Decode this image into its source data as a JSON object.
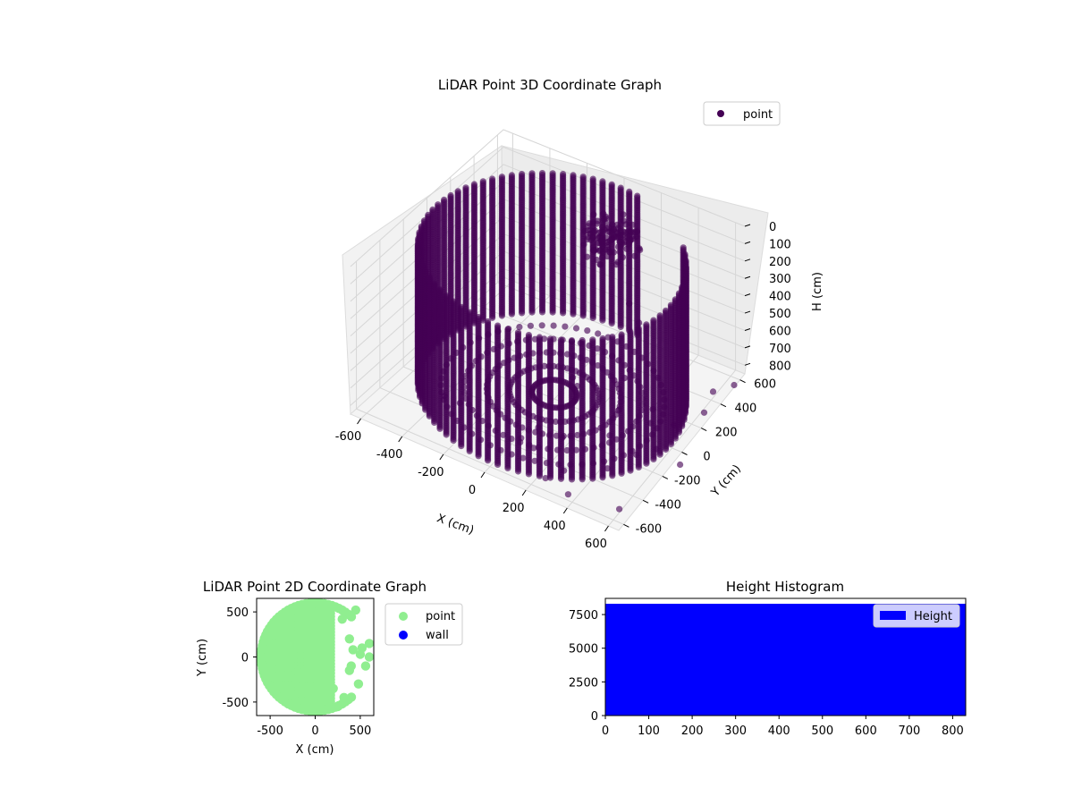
{
  "colors": {
    "point3d": "#440154",
    "point2d": "#90ee90",
    "wall": "#0000ff",
    "histogram": "#0000ff"
  },
  "chart_data": [
    {
      "type": "scatter",
      "projection": "3d",
      "title": "LiDAR Point 3D Coordinate Graph",
      "xlabel": "X (cm)",
      "ylabel": "Y (cm)",
      "zlabel": "H (cm)",
      "xlim": [
        -650,
        650
      ],
      "ylim": [
        -650,
        650
      ],
      "zlim": [
        850,
        0
      ],
      "xticks": [
        -600,
        -400,
        -200,
        0,
        200,
        400,
        600
      ],
      "yticks": [
        -600,
        -400,
        -200,
        0,
        200,
        400,
        600
      ],
      "zticks": [
        0,
        100,
        200,
        300,
        400,
        500,
        600,
        700,
        800
      ],
      "z_inverted": true,
      "grid": true,
      "legend": {
        "position": "upper-right",
        "entries": [
          "point"
        ]
      },
      "structure": {
        "wall_cylinder": {
          "radius": 600,
          "h_range": [
            20,
            820
          ],
          "arc_deg": [
            80,
            400
          ],
          "angle_step_deg": 4.5,
          "h_step": 10
        },
        "floor_disc_h": 820,
        "floor_radii": [
          100,
          200,
          300,
          400,
          500
        ],
        "blob_h_range": [
          130,
          330
        ]
      },
      "scattered_points": [
        [
          450,
          -350,
          800
        ],
        [
          520,
          -200,
          790
        ],
        [
          610,
          -560,
          810
        ],
        [
          300,
          -480,
          800
        ],
        [
          380,
          -600,
          815
        ],
        [
          560,
          100,
          805
        ],
        [
          470,
          40,
          795
        ],
        [
          640,
          250,
          800
        ],
        [
          200,
          -300,
          780
        ],
        [
          120,
          -420,
          800
        ],
        [
          560,
          -80,
          820
        ],
        [
          700,
          -120,
          815
        ],
        [
          420,
          160,
          820
        ],
        [
          300,
          60,
          810
        ],
        [
          600,
          420,
          815
        ],
        [
          360,
          -150,
          790
        ],
        [
          500,
          300,
          810
        ],
        [
          250,
          -560,
          815
        ],
        [
          80,
          -300,
          780
        ],
        [
          660,
          520,
          820
        ],
        [
          300,
          -350,
          400
        ],
        [
          420,
          -120,
          450
        ],
        [
          380,
          100,
          300
        ],
        [
          200,
          -200,
          500
        ],
        [
          -200,
          -500,
          650
        ],
        [
          -320,
          -420,
          720
        ],
        [
          100,
          -500,
          700
        ],
        [
          250,
          250,
          350
        ]
      ]
    },
    {
      "type": "scatter",
      "title": "LiDAR Point 2D Coordinate Graph",
      "xlabel": "X (cm)",
      "ylabel": "Y (cm)",
      "xlim": [
        -650,
        650
      ],
      "ylim": [
        -650,
        650
      ],
      "xticks": [
        -500,
        0,
        500
      ],
      "yticks": [
        -500,
        0,
        500
      ],
      "legend": {
        "position": "outside-right",
        "entries": [
          "point",
          "wall"
        ]
      },
      "series": [
        {
          "name": "point",
          "structure": {
            "shape": "disc",
            "radius": 600,
            "x_max": 200
          },
          "points": [
            [
              300,
              420
            ],
            [
              450,
              520
            ],
            [
              380,
              200
            ],
            [
              520,
              100
            ],
            [
              600,
              150
            ],
            [
              420,
              80
            ],
            [
              560,
              -100
            ],
            [
              380,
              -150
            ],
            [
              480,
              -300
            ],
            [
              320,
              -450
            ],
            [
              200,
              -350
            ],
            [
              250,
              -550
            ],
            [
              600,
              0
            ],
            [
              400,
              -100
            ],
            [
              500,
              30
            ]
          ]
        },
        {
          "name": "wall",
          "points": []
        }
      ]
    },
    {
      "type": "bar",
      "title": "Height Histogram",
      "xlim": [
        0,
        830
      ],
      "ylim": [
        0,
        8700
      ],
      "xticks": [
        0,
        100,
        200,
        300,
        400,
        500,
        600,
        700,
        800
      ],
      "yticks": [
        0,
        2500,
        5000,
        7500
      ],
      "legend": {
        "position": "upper-right",
        "entries": [
          "Height"
        ]
      },
      "series": [
        {
          "name": "Height",
          "bins": [
            {
              "x0": 0,
              "x1": 830,
              "value": 8300
            }
          ]
        }
      ]
    }
  ]
}
